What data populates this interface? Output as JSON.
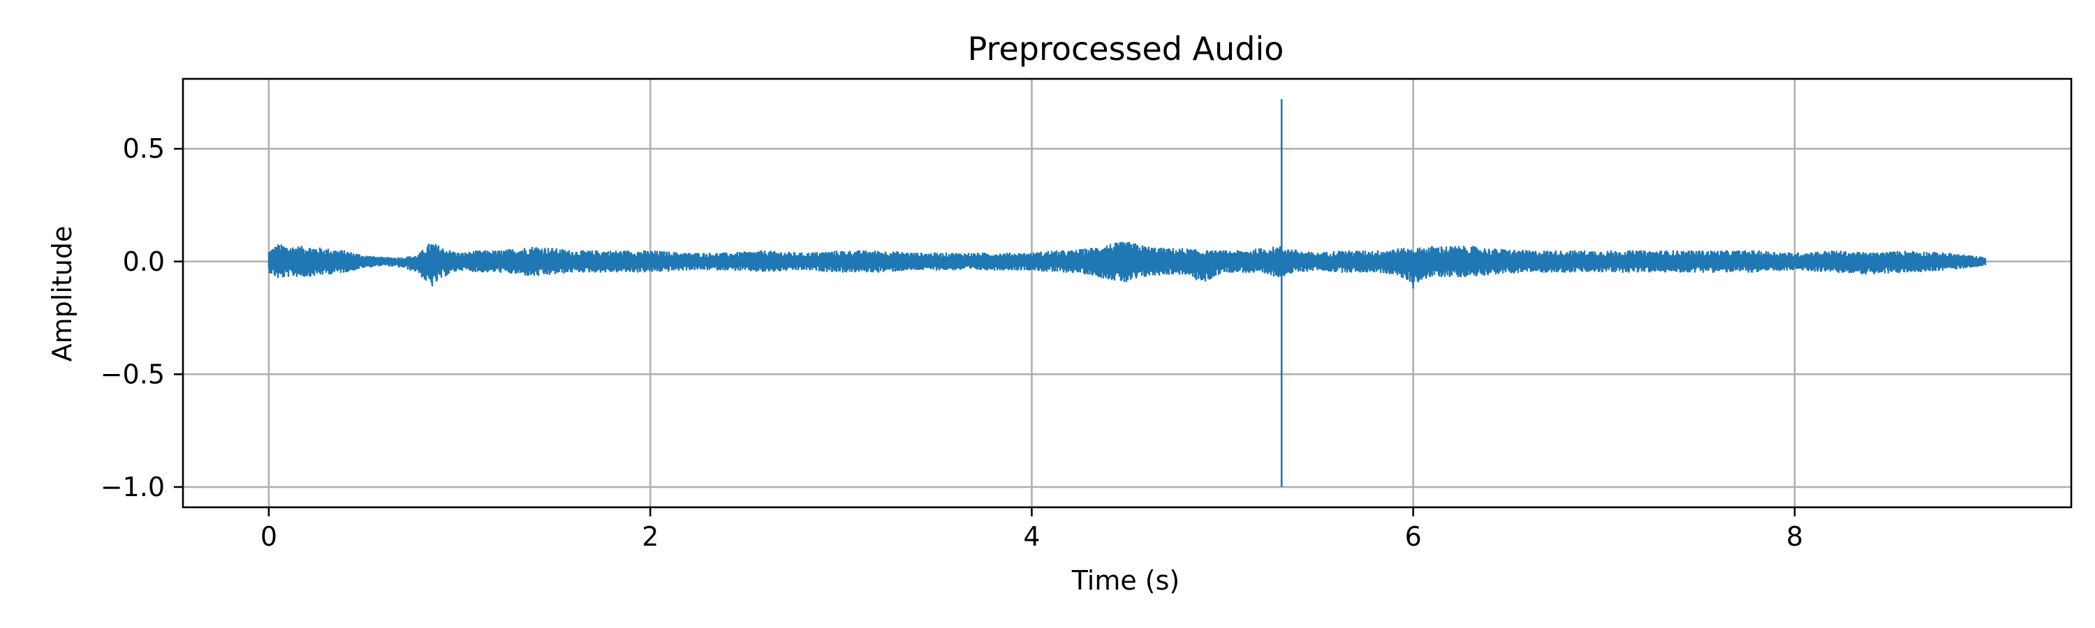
{
  "chart_data": {
    "type": "line",
    "title": "Preprocessed Audio",
    "xlabel": "Time (s)",
    "ylabel": "Amplitude",
    "xlim": [
      -0.45,
      9.45
    ],
    "ylim": [
      -1.09,
      0.81
    ],
    "grid": true,
    "legend": "none",
    "xticks": [
      0,
      2,
      4,
      6,
      8
    ],
    "xtick_labels": [
      "0",
      "2",
      "4",
      "6",
      "8"
    ],
    "yticks": [
      0.5,
      0.0,
      -0.5,
      -1.0
    ],
    "ytick_labels": [
      "0.5",
      "0.0",
      "−0.5",
      "−1.0"
    ],
    "series": [
      {
        "color": "#1f77b4",
        "envelope": {
          "x": [
            0.0,
            0.05,
            0.1,
            0.2,
            0.3,
            0.4,
            0.5,
            0.6,
            0.7,
            0.78,
            0.85,
            0.92,
            1.0,
            1.1,
            1.2,
            1.3,
            1.4,
            1.5,
            1.6,
            1.7,
            1.8,
            1.9,
            2.0,
            2.2,
            2.4,
            2.6,
            2.8,
            3.0,
            3.2,
            3.4,
            3.6,
            3.8,
            4.0,
            4.1,
            4.2,
            4.3,
            4.4,
            4.5,
            4.6,
            4.7,
            4.8,
            4.9,
            5.0,
            5.1,
            5.2,
            5.3,
            5.4,
            5.5,
            5.6,
            5.7,
            5.8,
            5.9,
            6.0,
            6.1,
            6.2,
            6.3,
            6.4,
            6.6,
            6.8,
            7.0,
            7.2,
            7.4,
            7.6,
            7.8,
            8.0,
            8.2,
            8.4,
            8.6,
            8.8,
            9.0
          ],
          "upper": [
            0.05,
            0.08,
            0.07,
            0.07,
            0.06,
            0.05,
            0.03,
            0.02,
            0.02,
            0.03,
            0.09,
            0.06,
            0.04,
            0.05,
            0.05,
            0.06,
            0.07,
            0.06,
            0.05,
            0.05,
            0.05,
            0.05,
            0.05,
            0.04,
            0.04,
            0.05,
            0.04,
            0.05,
            0.05,
            0.04,
            0.04,
            0.04,
            0.04,
            0.05,
            0.05,
            0.06,
            0.08,
            0.09,
            0.07,
            0.06,
            0.06,
            0.05,
            0.05,
            0.05,
            0.06,
            0.07,
            0.05,
            0.04,
            0.05,
            0.05,
            0.05,
            0.06,
            0.06,
            0.07,
            0.07,
            0.07,
            0.06,
            0.05,
            0.05,
            0.05,
            0.05,
            0.05,
            0.05,
            0.05,
            0.04,
            0.05,
            0.04,
            0.05,
            0.04,
            0.02
          ],
          "lower": [
            -0.05,
            -0.08,
            -0.07,
            -0.07,
            -0.06,
            -0.05,
            -0.03,
            -0.02,
            -0.03,
            -0.05,
            -0.12,
            -0.07,
            -0.04,
            -0.05,
            -0.05,
            -0.06,
            -0.07,
            -0.06,
            -0.05,
            -0.05,
            -0.05,
            -0.05,
            -0.05,
            -0.04,
            -0.04,
            -0.05,
            -0.04,
            -0.05,
            -0.05,
            -0.04,
            -0.04,
            -0.04,
            -0.04,
            -0.05,
            -0.05,
            -0.06,
            -0.08,
            -0.1,
            -0.07,
            -0.06,
            -0.06,
            -0.1,
            -0.05,
            -0.05,
            -0.06,
            -0.07,
            -0.05,
            -0.04,
            -0.05,
            -0.05,
            -0.05,
            -0.06,
            -0.1,
            -0.07,
            -0.07,
            -0.07,
            -0.06,
            -0.05,
            -0.05,
            -0.05,
            -0.05,
            -0.05,
            -0.05,
            -0.05,
            -0.04,
            -0.05,
            -0.06,
            -0.05,
            -0.04,
            -0.02
          ]
        },
        "spikes": [
          {
            "x": 5.31,
            "max": 0.72,
            "min": -1.0
          },
          {
            "x": 6.0,
            "max": 0.04,
            "min": -0.12
          }
        ]
      }
    ]
  }
}
